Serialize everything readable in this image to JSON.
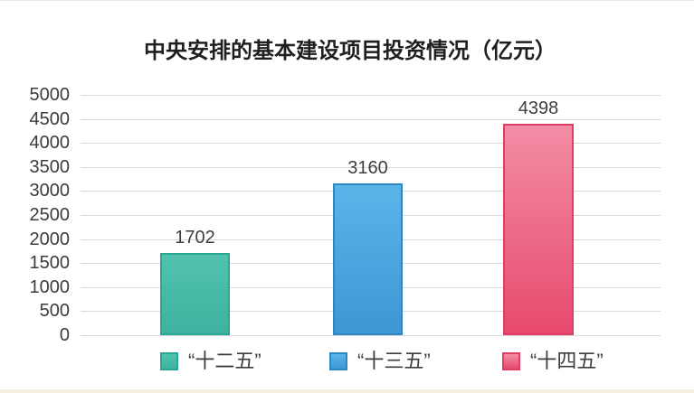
{
  "title": "中央安排的基本建设项目投资情况（亿元）",
  "chart_data": {
    "type": "bar",
    "title": "中央安排的基本建设项目投资情况（亿元）",
    "categories": [
      "“十二五”",
      "“十三五”",
      "“十四五”"
    ],
    "values": [
      1702,
      3160,
      4398
    ],
    "ylim": [
      0,
      5000
    ],
    "ytick_interval": 500,
    "yticks": [
      "5000",
      "4500",
      "4000",
      "3500",
      "3000",
      "2500",
      "2000",
      "1500",
      "1000",
      "500",
      "0"
    ],
    "grid": "horizontal",
    "legend_position": "bottom",
    "series_colors": [
      {
        "name": "“十二五”",
        "fill_top": "#52C2AE",
        "fill_bottom": "#3DB3A0",
        "border": "#2BA795"
      },
      {
        "name": "“十三五”",
        "fill_top": "#5BB5E8",
        "fill_bottom": "#3E96D4",
        "border": "#2E87C5"
      },
      {
        "name": "“十四五”",
        "fill_top": "#F38DA5",
        "fill_bottom": "#E74A6E",
        "border": "#DE3D64"
      }
    ]
  }
}
